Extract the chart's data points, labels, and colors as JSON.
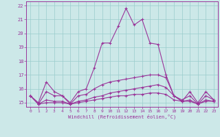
{
  "xlabel": "Windchill (Refroidissement éolien,°C)",
  "background_color": "#cce8e8",
  "line_color": "#993399",
  "grid_color": "#99cccc",
  "xlim": [
    -0.5,
    23.5
  ],
  "ylim": [
    14.7,
    22.3
  ],
  "yticks": [
    15,
    16,
    17,
    18,
    19,
    20,
    21,
    22
  ],
  "xticks": [
    0,
    1,
    2,
    3,
    4,
    5,
    6,
    7,
    8,
    9,
    10,
    11,
    12,
    13,
    14,
    15,
    16,
    17,
    18,
    19,
    20,
    21,
    22,
    23
  ],
  "series": [
    {
      "x": [
        0,
        1,
        2,
        3,
        4,
        5,
        6,
        7,
        8,
        9,
        10,
        11,
        12,
        13,
        14,
        15,
        16,
        17,
        18,
        19,
        20,
        21,
        22,
        23
      ],
      "y": [
        15.5,
        15.0,
        16.5,
        15.8,
        15.5,
        15.0,
        15.8,
        16.0,
        17.5,
        19.3,
        19.3,
        20.5,
        21.8,
        20.6,
        21.0,
        19.3,
        19.2,
        17.0,
        15.5,
        15.1,
        15.8,
        15.0,
        15.8,
        15.2
      ]
    },
    {
      "x": [
        0,
        1,
        2,
        3,
        4,
        5,
        6,
        7,
        8,
        9,
        10,
        11,
        12,
        13,
        14,
        15,
        16,
        17,
        18,
        19,
        20,
        21,
        22,
        23
      ],
      "y": [
        15.5,
        14.9,
        15.8,
        15.5,
        15.5,
        14.9,
        15.5,
        15.6,
        16.0,
        16.3,
        16.5,
        16.6,
        16.7,
        16.8,
        16.9,
        17.0,
        17.0,
        16.8,
        15.5,
        15.2,
        15.5,
        14.9,
        15.5,
        15.2
      ]
    },
    {
      "x": [
        0,
        1,
        2,
        3,
        4,
        5,
        6,
        7,
        8,
        9,
        10,
        11,
        12,
        13,
        14,
        15,
        16,
        17,
        18,
        19,
        20,
        21,
        22,
        23
      ],
      "y": [
        15.5,
        14.9,
        15.2,
        15.1,
        15.1,
        14.9,
        15.1,
        15.2,
        15.4,
        15.5,
        15.7,
        15.8,
        15.9,
        16.0,
        16.1,
        16.2,
        16.3,
        16.1,
        15.5,
        15.1,
        15.2,
        14.9,
        15.2,
        15.1
      ]
    },
    {
      "x": [
        0,
        1,
        2,
        3,
        4,
        5,
        6,
        7,
        8,
        9,
        10,
        11,
        12,
        13,
        14,
        15,
        16,
        17,
        18,
        19,
        20,
        21,
        22,
        23
      ],
      "y": [
        15.5,
        14.9,
        15.0,
        15.0,
        15.0,
        14.9,
        15.0,
        15.1,
        15.2,
        15.3,
        15.4,
        15.5,
        15.5,
        15.6,
        15.6,
        15.7,
        15.7,
        15.6,
        15.2,
        15.1,
        15.1,
        14.9,
        15.1,
        15.1
      ]
    }
  ]
}
